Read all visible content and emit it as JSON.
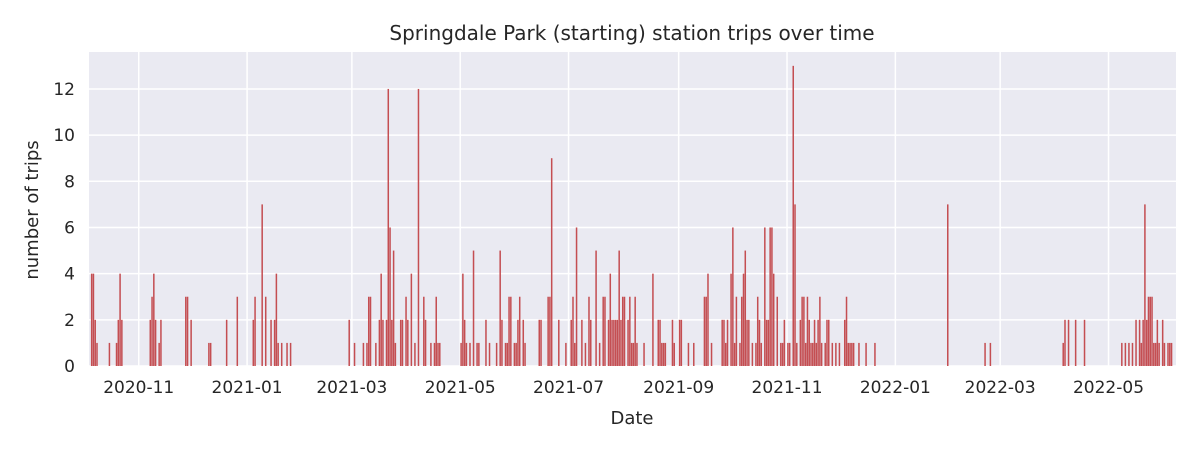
{
  "chart_data": {
    "type": "bar",
    "title": "Springdale Park (starting) station trips over time",
    "xlabel": "Date",
    "ylabel": "number of trips",
    "xlim": [
      "2020-10-04",
      "2022-06-08"
    ],
    "ylim": [
      0,
      13.6
    ],
    "y_ticks": [
      0,
      2,
      4,
      6,
      8,
      10,
      12
    ],
    "x_ticks": [
      "2020-11",
      "2021-01",
      "2021-03",
      "2021-05",
      "2021-07",
      "2021-09",
      "2021-11",
      "2022-01",
      "2022-03",
      "2022-05"
    ],
    "x_tick_dates": [
      "2020-11-01",
      "2021-01-01",
      "2021-03-01",
      "2021-05-01",
      "2021-07-01",
      "2021-09-01",
      "2021-11-01",
      "2022-01-01",
      "2022-03-01",
      "2022-05-01"
    ],
    "grid": true,
    "bar_color": "#c44e52",
    "background_color": "#eaeaf2",
    "series": [
      {
        "values": [
          [
            "2020-10-05",
            4
          ],
          [
            "2020-10-06",
            4
          ],
          [
            "2020-10-07",
            2
          ],
          [
            "2020-10-08",
            1
          ],
          [
            "2020-10-15",
            1
          ],
          [
            "2020-10-19",
            1
          ],
          [
            "2020-10-20",
            2
          ],
          [
            "2020-10-21",
            4
          ],
          [
            "2020-10-22",
            2
          ],
          [
            "2020-11-07",
            2
          ],
          [
            "2020-11-08",
            3
          ],
          [
            "2020-11-09",
            4
          ],
          [
            "2020-11-10",
            2
          ],
          [
            "2020-11-12",
            1
          ],
          [
            "2020-11-13",
            2
          ],
          [
            "2020-11-27",
            3
          ],
          [
            "2020-11-28",
            3
          ],
          [
            "2020-11-30",
            2
          ],
          [
            "2020-12-10",
            1
          ],
          [
            "2020-12-11",
            1
          ],
          [
            "2020-12-20",
            2
          ],
          [
            "2020-12-26",
            3
          ],
          [
            "2021-01-04",
            2
          ],
          [
            "2021-01-05",
            3
          ],
          [
            "2021-01-09",
            7
          ],
          [
            "2021-01-11",
            3
          ],
          [
            "2021-01-14",
            2
          ],
          [
            "2021-01-16",
            2
          ],
          [
            "2021-01-17",
            4
          ],
          [
            "2021-01-18",
            1
          ],
          [
            "2021-01-20",
            1
          ],
          [
            "2021-01-23",
            1
          ],
          [
            "2021-01-25",
            1
          ],
          [
            "2021-02-27",
            2
          ],
          [
            "2021-03-02",
            1
          ],
          [
            "2021-03-07",
            1
          ],
          [
            "2021-03-09",
            1
          ],
          [
            "2021-03-10",
            3
          ],
          [
            "2021-03-11",
            3
          ],
          [
            "2021-03-14",
            1
          ],
          [
            "2021-03-16",
            2
          ],
          [
            "2021-03-17",
            4
          ],
          [
            "2021-03-18",
            2
          ],
          [
            "2021-03-20",
            2
          ],
          [
            "2021-03-21",
            12
          ],
          [
            "2021-03-22",
            6
          ],
          [
            "2021-03-23",
            2
          ],
          [
            "2021-03-24",
            5
          ],
          [
            "2021-03-25",
            1
          ],
          [
            "2021-03-28",
            2
          ],
          [
            "2021-03-29",
            2
          ],
          [
            "2021-03-31",
            3
          ],
          [
            "2021-04-01",
            2
          ],
          [
            "2021-04-03",
            4
          ],
          [
            "2021-04-05",
            1
          ],
          [
            "2021-04-07",
            12
          ],
          [
            "2021-04-10",
            3
          ],
          [
            "2021-04-11",
            2
          ],
          [
            "2021-04-14",
            1
          ],
          [
            "2021-04-16",
            1
          ],
          [
            "2021-04-17",
            3
          ],
          [
            "2021-04-18",
            1
          ],
          [
            "2021-04-19",
            1
          ],
          [
            "2021-05-01",
            1
          ],
          [
            "2021-05-02",
            4
          ],
          [
            "2021-05-03",
            2
          ],
          [
            "2021-05-04",
            1
          ],
          [
            "2021-05-06",
            1
          ],
          [
            "2021-05-08",
            5
          ],
          [
            "2021-05-10",
            1
          ],
          [
            "2021-05-11",
            1
          ],
          [
            "2021-05-15",
            2
          ],
          [
            "2021-05-17",
            1
          ],
          [
            "2021-05-21",
            1
          ],
          [
            "2021-05-23",
            5
          ],
          [
            "2021-05-24",
            2
          ],
          [
            "2021-05-26",
            1
          ],
          [
            "2021-05-27",
            1
          ],
          [
            "2021-05-28",
            3
          ],
          [
            "2021-05-29",
            3
          ],
          [
            "2021-05-31",
            1
          ],
          [
            "2021-06-01",
            1
          ],
          [
            "2021-06-02",
            2
          ],
          [
            "2021-06-03",
            3
          ],
          [
            "2021-06-05",
            2
          ],
          [
            "2021-06-06",
            1
          ],
          [
            "2021-06-14",
            2
          ],
          [
            "2021-06-15",
            2
          ],
          [
            "2021-06-19",
            3
          ],
          [
            "2021-06-20",
            3
          ],
          [
            "2021-06-21",
            9
          ],
          [
            "2021-06-25",
            2
          ],
          [
            "2021-06-29",
            1
          ],
          [
            "2021-07-02",
            2
          ],
          [
            "2021-07-03",
            3
          ],
          [
            "2021-07-04",
            1
          ],
          [
            "2021-07-05",
            6
          ],
          [
            "2021-07-08",
            2
          ],
          [
            "2021-07-10",
            1
          ],
          [
            "2021-07-12",
            3
          ],
          [
            "2021-07-13",
            2
          ],
          [
            "2021-07-16",
            5
          ],
          [
            "2021-07-18",
            1
          ],
          [
            "2021-07-20",
            3
          ],
          [
            "2021-07-21",
            3
          ],
          [
            "2021-07-23",
            2
          ],
          [
            "2021-07-24",
            4
          ],
          [
            "2021-07-25",
            2
          ],
          [
            "2021-07-26",
            2
          ],
          [
            "2021-07-27",
            2
          ],
          [
            "2021-07-28",
            2
          ],
          [
            "2021-07-29",
            5
          ],
          [
            "2021-07-30",
            2
          ],
          [
            "2021-07-31",
            3
          ],
          [
            "2021-08-01",
            3
          ],
          [
            "2021-08-03",
            2
          ],
          [
            "2021-08-04",
            3
          ],
          [
            "2021-08-05",
            1
          ],
          [
            "2021-08-06",
            1
          ],
          [
            "2021-08-07",
            3
          ],
          [
            "2021-08-08",
            1
          ],
          [
            "2021-08-12",
            1
          ],
          [
            "2021-08-17",
            4
          ],
          [
            "2021-08-20",
            2
          ],
          [
            "2021-08-21",
            2
          ],
          [
            "2021-08-22",
            1
          ],
          [
            "2021-08-23",
            1
          ],
          [
            "2021-08-24",
            1
          ],
          [
            "2021-08-28",
            2
          ],
          [
            "2021-08-29",
            1
          ],
          [
            "2021-09-01",
            2
          ],
          [
            "2021-09-02",
            2
          ],
          [
            "2021-09-06",
            1
          ],
          [
            "2021-09-09",
            1
          ],
          [
            "2021-09-15",
            3
          ],
          [
            "2021-09-16",
            3
          ],
          [
            "2021-09-17",
            4
          ],
          [
            "2021-09-19",
            1
          ],
          [
            "2021-09-25",
            2
          ],
          [
            "2021-09-26",
            2
          ],
          [
            "2021-09-27",
            1
          ],
          [
            "2021-09-28",
            2
          ],
          [
            "2021-09-30",
            4
          ],
          [
            "2021-10-01",
            6
          ],
          [
            "2021-10-02",
            1
          ],
          [
            "2021-10-03",
            3
          ],
          [
            "2021-10-05",
            1
          ],
          [
            "2021-10-06",
            3
          ],
          [
            "2021-10-07",
            4
          ],
          [
            "2021-10-08",
            5
          ],
          [
            "2021-10-09",
            2
          ],
          [
            "2021-10-10",
            2
          ],
          [
            "2021-10-12",
            1
          ],
          [
            "2021-10-14",
            1
          ],
          [
            "2021-10-15",
            3
          ],
          [
            "2021-10-16",
            2
          ],
          [
            "2021-10-17",
            1
          ],
          [
            "2021-10-19",
            6
          ],
          [
            "2021-10-20",
            2
          ],
          [
            "2021-10-21",
            2
          ],
          [
            "2021-10-22",
            6
          ],
          [
            "2021-10-23",
            6
          ],
          [
            "2021-10-24",
            4
          ],
          [
            "2021-10-26",
            3
          ],
          [
            "2021-10-28",
            1
          ],
          [
            "2021-10-29",
            1
          ],
          [
            "2021-10-30",
            2
          ],
          [
            "2021-11-01",
            1
          ],
          [
            "2021-11-02",
            1
          ],
          [
            "2021-11-04",
            13
          ],
          [
            "2021-11-05",
            7
          ],
          [
            "2021-11-06",
            1
          ],
          [
            "2021-11-08",
            2
          ],
          [
            "2021-11-09",
            3
          ],
          [
            "2021-11-10",
            3
          ],
          [
            "2021-11-11",
            1
          ],
          [
            "2021-11-12",
            3
          ],
          [
            "2021-11-13",
            2
          ],
          [
            "2021-11-14",
            1
          ],
          [
            "2021-11-15",
            1
          ],
          [
            "2021-11-16",
            2
          ],
          [
            "2021-11-17",
            1
          ],
          [
            "2021-11-18",
            2
          ],
          [
            "2021-11-19",
            3
          ],
          [
            "2021-11-20",
            1
          ],
          [
            "2021-11-22",
            1
          ],
          [
            "2021-11-23",
            2
          ],
          [
            "2021-11-24",
            2
          ],
          [
            "2021-11-26",
            1
          ],
          [
            "2021-11-28",
            1
          ],
          [
            "2021-11-30",
            1
          ],
          [
            "2021-12-03",
            2
          ],
          [
            "2021-12-04",
            3
          ],
          [
            "2021-12-05",
            1
          ],
          [
            "2021-12-06",
            1
          ],
          [
            "2021-12-07",
            1
          ],
          [
            "2021-12-08",
            1
          ],
          [
            "2021-12-11",
            1
          ],
          [
            "2021-12-15",
            1
          ],
          [
            "2021-12-20",
            1
          ],
          [
            "2022-01-30",
            7
          ],
          [
            "2022-02-20",
            1
          ],
          [
            "2022-02-23",
            1
          ],
          [
            "2022-04-05",
            1
          ],
          [
            "2022-04-06",
            2
          ],
          [
            "2022-04-08",
            2
          ],
          [
            "2022-04-12",
            2
          ],
          [
            "2022-04-17",
            2
          ],
          [
            "2022-05-08",
            1
          ],
          [
            "2022-05-10",
            1
          ],
          [
            "2022-05-12",
            1
          ],
          [
            "2022-05-14",
            1
          ],
          [
            "2022-05-16",
            2
          ],
          [
            "2022-05-18",
            2
          ],
          [
            "2022-05-19",
            1
          ],
          [
            "2022-05-20",
            2
          ],
          [
            "2022-05-21",
            7
          ],
          [
            "2022-05-22",
            2
          ],
          [
            "2022-05-23",
            3
          ],
          [
            "2022-05-24",
            3
          ],
          [
            "2022-05-25",
            3
          ],
          [
            "2022-05-26",
            1
          ],
          [
            "2022-05-27",
            1
          ],
          [
            "2022-05-28",
            2
          ],
          [
            "2022-05-29",
            1
          ],
          [
            "2022-05-31",
            2
          ],
          [
            "2022-06-01",
            1
          ],
          [
            "2022-06-03",
            1
          ],
          [
            "2022-06-04",
            1
          ],
          [
            "2022-06-05",
            1
          ]
        ]
      }
    ]
  }
}
